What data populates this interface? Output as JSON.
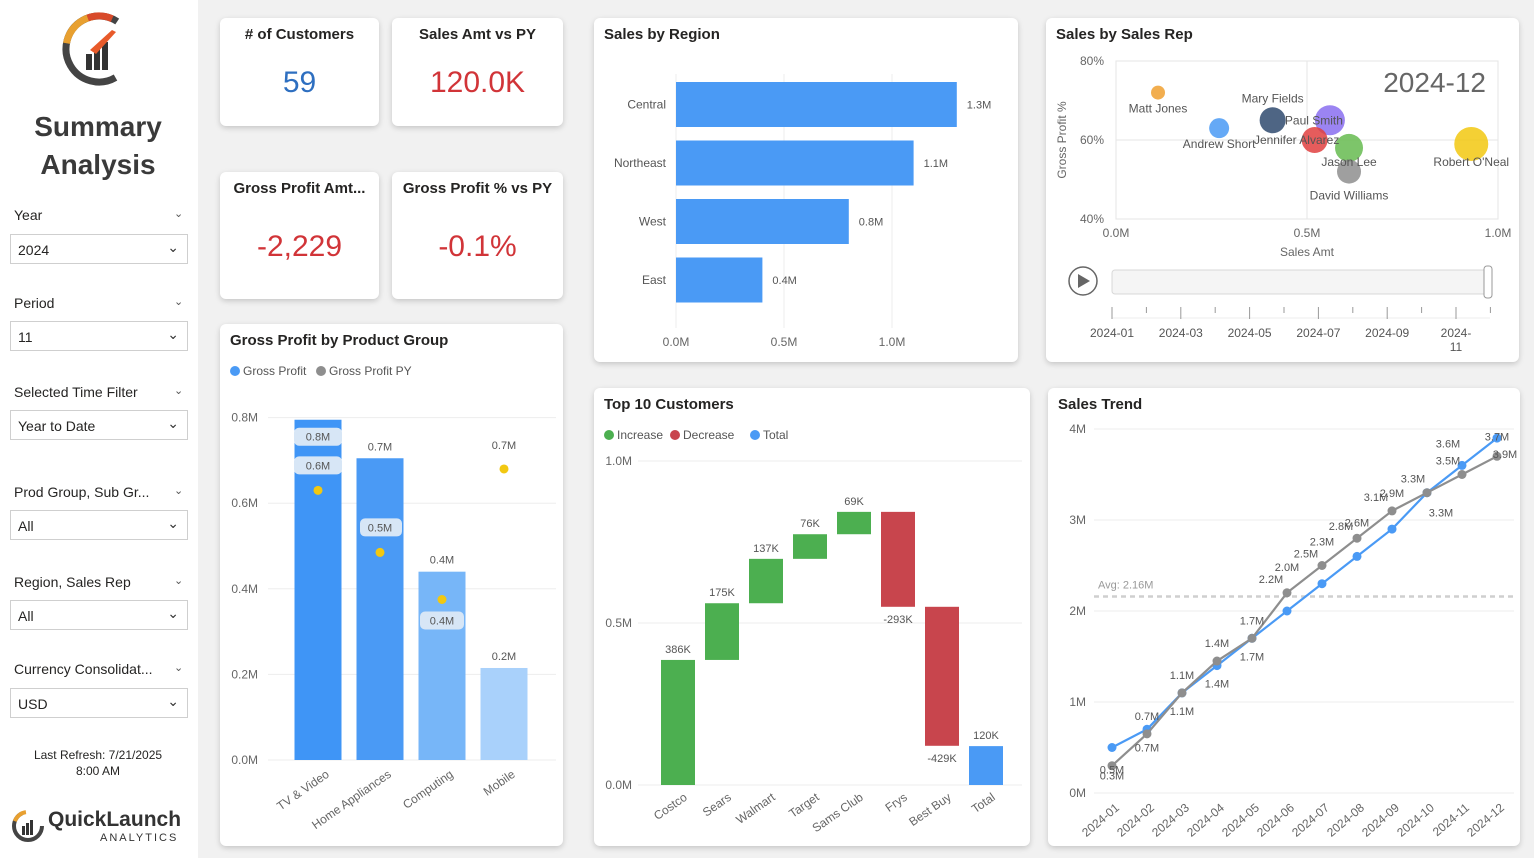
{
  "sidebar": {
    "title_line1": "Summary",
    "title_line2": "Analysis",
    "filters": [
      {
        "label": "Year",
        "value": "2024"
      },
      {
        "label": "Period",
        "value": "11"
      },
      {
        "label": "Selected Time Filter",
        "value": "Year to Date"
      },
      {
        "label": "Prod Group, Sub Gr...",
        "value": "All"
      },
      {
        "label": "Region, Sales Rep",
        "value": "All"
      },
      {
        "label": "Currency Consolidat...",
        "value": "USD"
      }
    ],
    "refresh_line1": "Last Refresh: 7/21/2025",
    "refresh_line2": "8:00 AM",
    "brand_name": "QuickLaunch",
    "brand_sub": "ANALYTICS"
  },
  "kpis": {
    "customers": {
      "title": "# of Customers",
      "value": "59",
      "color": "#2e6fc0"
    },
    "sales_vs_py": {
      "title": "Sales Amt vs PY",
      "value": "120.0K",
      "color": "#d13438"
    },
    "gross_profit": {
      "title": "Gross Profit Amt...",
      "value": "-2,229",
      "color": "#d13438"
    },
    "gp_pct_vs_py": {
      "title": "Gross Profit % vs PY",
      "value": "-0.1%",
      "color": "#d13438"
    }
  },
  "chart_data": [
    {
      "id": "sales_by_region",
      "type": "bar",
      "title": "Sales by Region",
      "orientation": "horizontal",
      "categories": [
        "Central",
        "Northeast",
        "West",
        "East"
      ],
      "values": [
        1.3,
        1.1,
        0.8,
        0.4
      ],
      "value_labels": [
        "1.3M",
        "1.1M",
        "0.8M",
        "0.4M"
      ],
      "xticks": [
        "0.0M",
        "0.5M",
        "1.0M"
      ],
      "xlim": [
        0,
        1.5
      ],
      "color": "#4a9af5"
    },
    {
      "id": "gross_profit_by_product_group",
      "type": "bar",
      "title": "Gross Profit by Product Group",
      "legend": [
        "Gross Profit",
        "Gross Profit PY"
      ],
      "legend_colors": [
        "#4a9af5",
        "#8e8e8e"
      ],
      "categories": [
        "TV & Video",
        "Home Appliances",
        "Computing",
        "Mobile"
      ],
      "series": [
        {
          "name": "Gross Profit",
          "values": [
            0.8,
            0.7,
            0.4,
            0.2
          ],
          "labels": [
            "0.8M",
            "0.7M",
            "0.4M",
            "0.2M"
          ]
        },
        {
          "name": "Gross Profit PY",
          "values": [
            0.6,
            0.5,
            0.4,
            0.7
          ],
          "labels": [
            "0.6M",
            "0.5M",
            "0.4M",
            "0.7M"
          ]
        }
      ],
      "bar_colors": [
        "#3f95f6",
        "#4a9af5",
        "#77b6f8",
        "#a9d1fb"
      ],
      "marker_color": "#f2c811",
      "yticks": [
        "0.0M",
        "0.2M",
        "0.4M",
        "0.6M",
        "0.8M"
      ],
      "ylim": [
        0,
        0.8
      ]
    },
    {
      "id": "top_10_customers",
      "type": "waterfall",
      "title": "Top 10 Customers",
      "legend": [
        "Increase",
        "Decrease",
        "Total"
      ],
      "legend_colors": [
        "#4caf50",
        "#c8454d",
        "#4a9af5"
      ],
      "categories": [
        "Costco",
        "Sears",
        "Walmart",
        "Target",
        "Sams Club",
        "Frys",
        "Best Buy",
        "Total"
      ],
      "values": [
        386,
        175,
        137,
        76,
        69,
        -293,
        -429,
        120
      ],
      "value_labels": [
        "386K",
        "175K",
        "137K",
        "76K",
        "69K",
        "-293K",
        "-429K",
        "120K"
      ],
      "yticks": [
        "0.0M",
        "0.5M",
        "1.0M"
      ],
      "ylim": [
        0,
        1000
      ]
    },
    {
      "id": "sales_by_sales_rep",
      "type": "scatter",
      "title": "Sales by Sales Rep",
      "play_label": "2024-12",
      "xlabel": "Sales Amt",
      "ylabel": "Gross Profit %",
      "xticks": [
        "0.0M",
        "0.5M",
        "1.0M"
      ],
      "yticks": [
        "40%",
        "60%",
        "80%"
      ],
      "xlim": [
        0,
        1.0
      ],
      "ylim": [
        40,
        80
      ],
      "points": [
        {
          "name": "Matt Jones",
          "x": 0.11,
          "y": 72,
          "size": 7,
          "color": "#f0a030"
        },
        {
          "name": "Andrew Short",
          "x": 0.27,
          "y": 63,
          "size": 10,
          "color": "#4a9af5"
        },
        {
          "name": "Mary Fields",
          "x": 0.41,
          "y": 65,
          "size": 13,
          "color": "#2f4a6e"
        },
        {
          "name": "Paul Smith",
          "x": 0.56,
          "y": 65,
          "size": 15,
          "color": "#8a6ff0"
        },
        {
          "name": "Jennifer Alvarez",
          "x": 0.52,
          "y": 60,
          "size": 13,
          "color": "#e04040"
        },
        {
          "name": "Jason Lee",
          "x": 0.61,
          "y": 58,
          "size": 14,
          "color": "#66bb50"
        },
        {
          "name": "David Williams",
          "x": 0.61,
          "y": 52,
          "size": 12,
          "color": "#8e8e8e"
        },
        {
          "name": "Robert O'Neal",
          "x": 0.93,
          "y": 59,
          "size": 17,
          "color": "#f2c811"
        }
      ],
      "timeline": [
        "2024-01",
        "2024-03",
        "2024-05",
        "2024-07",
        "2024-09",
        "2024-11"
      ]
    },
    {
      "id": "sales_trend",
      "type": "line",
      "title": "Sales Trend",
      "x": [
        "2024-01",
        "2024-02",
        "2024-03",
        "2024-04",
        "2024-05",
        "2024-06",
        "2024-07",
        "2024-08",
        "2024-09",
        "2024-10",
        "2024-11",
        "2024-12"
      ],
      "series": [
        {
          "name": "Sales",
          "color": "#4a9af5",
          "values": [
            0.5,
            0.7,
            1.1,
            1.4,
            1.7,
            2.0,
            2.3,
            2.6,
            2.9,
            3.3,
            3.6,
            3.9
          ],
          "labels": [
            "0.5M",
            "0.7M",
            "1.1M",
            "1.4M",
            "1.7M",
            "2.0M",
            "2.3M",
            "2.6M",
            "2.9M",
            "3.3M",
            "3.6M",
            "3.9M"
          ]
        },
        {
          "name": "Sales PY",
          "color": "#8e8e8e",
          "values": [
            0.3,
            0.65,
            1.1,
            1.45,
            1.7,
            2.2,
            2.5,
            2.8,
            3.1,
            3.3,
            3.5,
            3.7
          ],
          "labels": [
            "0.3M",
            "0.7M",
            "1.1M",
            "1.4M",
            "1.7M",
            "2.2M",
            "2.5M",
            "2.8M",
            "3.1M",
            "3.3M",
            "3.5M",
            "3.7M"
          ]
        }
      ],
      "avg_label": "Avg: 2.16M",
      "avg_value": 2.16,
      "yticks": [
        "0M",
        "1M",
        "2M",
        "3M",
        "4M"
      ],
      "ylim": [
        0,
        4
      ]
    }
  ]
}
